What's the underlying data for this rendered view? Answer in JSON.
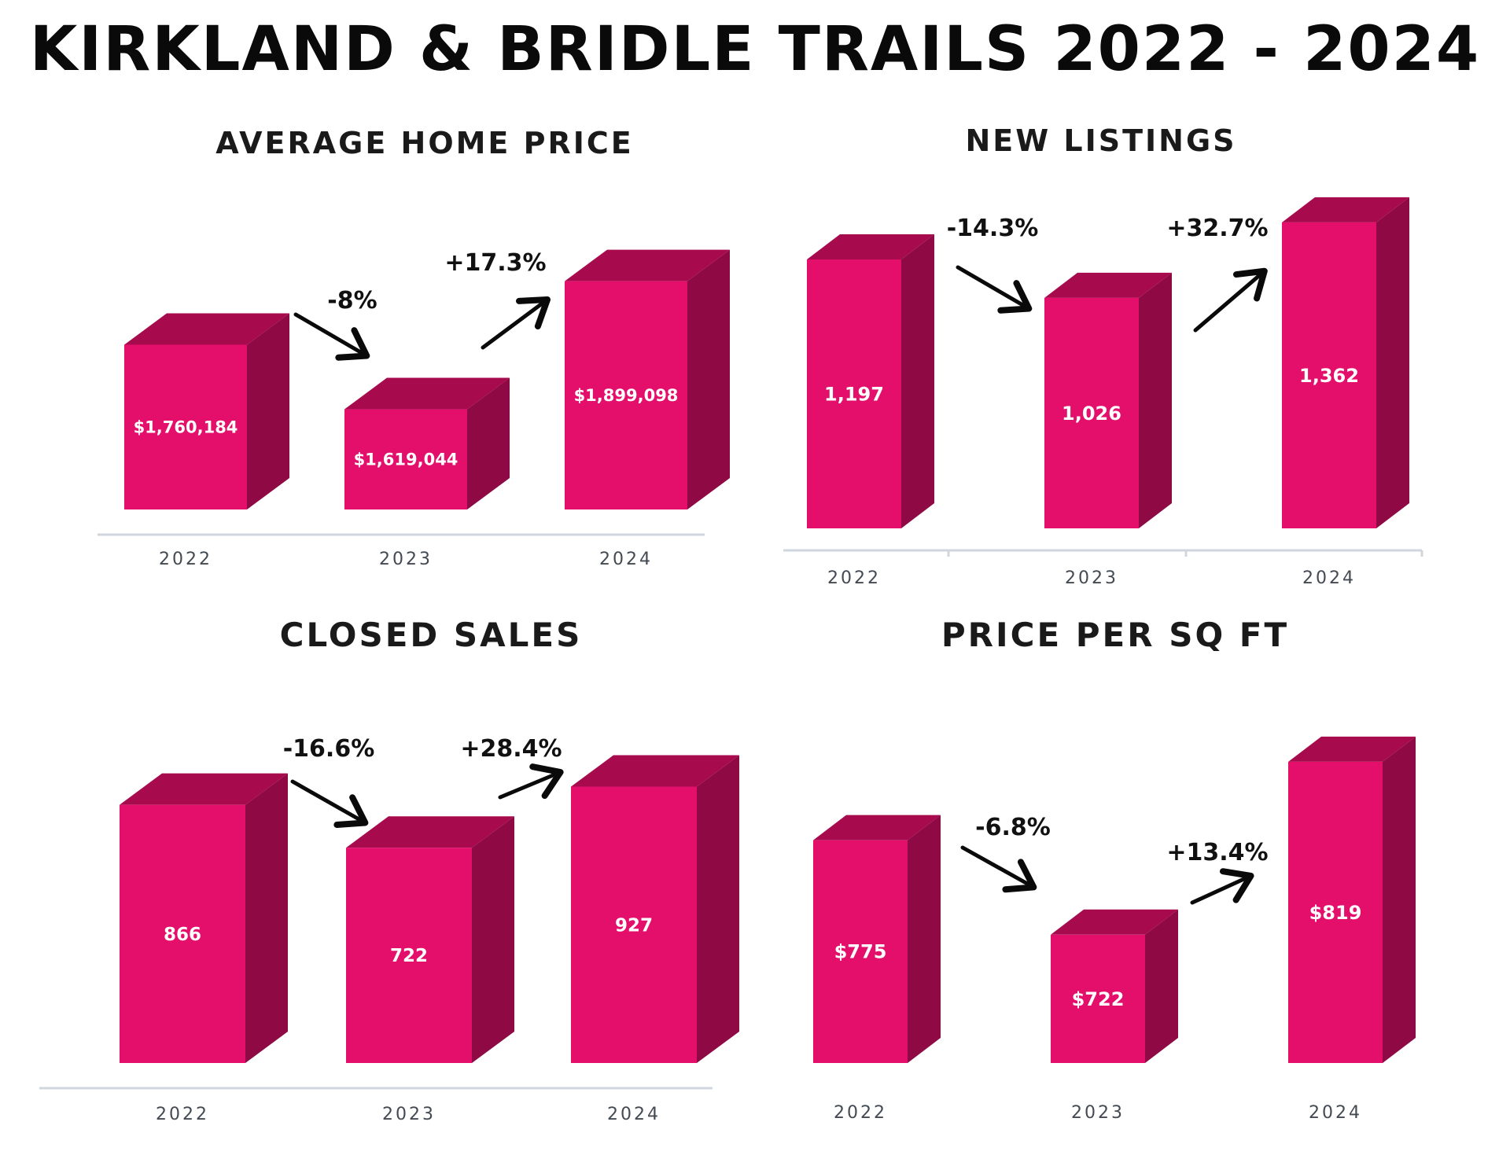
{
  "title": "KIRKLAND & BRIDLE TRAILS 2022 - 2024",
  "colors": {
    "bar_front": "#E30F6B",
    "bar_top": "#A80A4E",
    "bar_side": "#8F0944",
    "axis": "#cfd6dd",
    "arrow": "#0a0a0a"
  },
  "chart_data": [
    {
      "type": "bar",
      "title": "AVERAGE HOME PRICE",
      "categories": [
        "2022",
        "2023",
        "2024"
      ],
      "values": [
        1760184,
        1619044,
        1899098
      ],
      "value_labels": [
        "$1,760,184",
        "$1,619,044",
        "$1,899,098"
      ],
      "changes": [
        "-8%",
        "+17.3%"
      ],
      "ylim": [
        1400000,
        1950000
      ]
    },
    {
      "type": "bar",
      "title": "NEW LISTINGS",
      "categories": [
        "2022",
        "2023",
        "2024"
      ],
      "values": [
        1197,
        1026,
        1362
      ],
      "value_labels": [
        "1,197",
        "1,026",
        "1,362"
      ],
      "changes": [
        "-14.3%",
        "+32.7%"
      ],
      "ylim": [
        0,
        1400
      ]
    },
    {
      "type": "bar",
      "title": "CLOSED SALES",
      "categories": [
        "2022",
        "2023",
        "2024"
      ],
      "values": [
        866,
        722,
        927
      ],
      "value_labels": [
        "866",
        "722",
        "927"
      ],
      "changes": [
        "-16.6%",
        "+28.4%"
      ],
      "ylim": [
        0,
        960
      ]
    },
    {
      "type": "bar",
      "title": "PRICE PER SQ FT",
      "categories": [
        "2022",
        "2023",
        "2024"
      ],
      "values": [
        775,
        722,
        819
      ],
      "value_labels": [
        "$775",
        "$722",
        "$819"
      ],
      "changes": [
        "-6.8%",
        "+13.4%"
      ],
      "ylim": [
        650,
        830
      ]
    }
  ]
}
